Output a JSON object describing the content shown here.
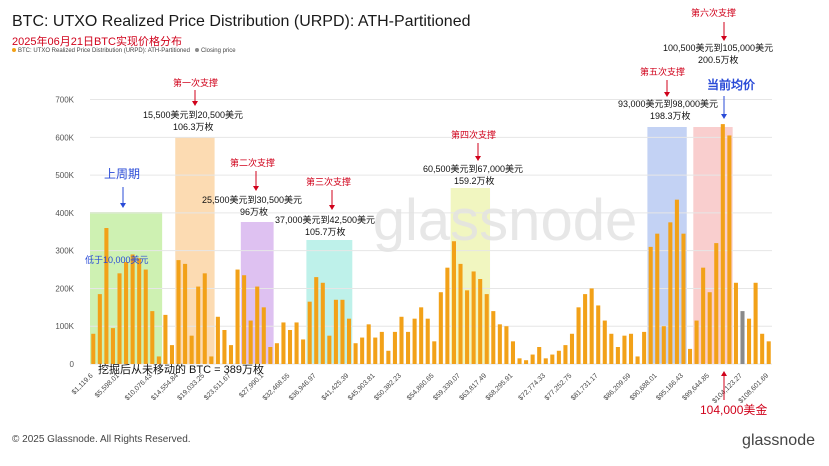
{
  "header": {
    "title": "BTC: UTXO Realized Price Distribution (URPD): ATH-Partitioned",
    "subtitle": "2025年06月21日BTC实现价格分布",
    "legend_series": "BTC: UTXO Realized Price Distribution (URPD): ATH-Partitioned",
    "legend_closing": "Closing price"
  },
  "footer": {
    "copyright": "© 2025 Glassnode. All Rights Reserved.",
    "brand": "glassnode",
    "watermark": "glassnode"
  },
  "annotations": {
    "last_cycle": "上周期",
    "below_10000": "低于10,000美元",
    "support1_title": "第一次支撑",
    "support1_range": "15,500美元到20,500美元",
    "support1_amount": "106.3万枚",
    "support2_title": "第二次支撑",
    "support2_range": "25,500美元到30,500美元",
    "support2_amount": "96万枚",
    "support3_title": "第三次支撑",
    "support3_range": "37,000美元到42,500美元",
    "support3_amount": "105.7万枚",
    "support4_title": "第四次支撑",
    "support4_range": "60,500美元到67,000美元",
    "support4_amount": "159.2万枚",
    "support5_title": "第五次支撑",
    "support5_range": "93,000美元到98,000美元",
    "support5_amount": "198.3万枚",
    "support6_title": "第六次支撑",
    "support6_range": "100,500美元到105,000美元",
    "support6_amount": "200.5万枚",
    "current_avg": "当前均价",
    "unmoved": "挖掘后从未移动的 BTC = 389万枚",
    "price_104000": "104,000美金"
  },
  "colors": {
    "bar": "#f2a118",
    "closing": "#8a8a8a",
    "zone_green": "#c6efa4",
    "zone_orange": "#fbd5a5",
    "zone_purple": "#d8b6ee",
    "zone_teal": "#b3eee6",
    "zone_yellow": "#eef5b5",
    "zone_blue": "#b9caf2",
    "zone_pink": "#f8c6c6",
    "accent_red": "#d0021b",
    "accent_blue": "#2a4bd7"
  },
  "chart_data": {
    "type": "bar",
    "yticks": [
      "0",
      "100K",
      "200K",
      "300K",
      "400K",
      "500K",
      "600K",
      "700K"
    ],
    "ylim": [
      0,
      720000
    ],
    "xticks": [
      "$1,119.6",
      "$5,598.01",
      "$10,076.43",
      "$14,554.84",
      "$19,033.25",
      "$23,511.67",
      "$27,990.1",
      "$32,468.55",
      "$36,946.97",
      "$41,425.39",
      "$45,903.81",
      "$50,382.23",
      "$54,860.65",
      "$59,339.07",
      "$63,817.49",
      "$68,295.91",
      "$72,774.33",
      "$77,252.75",
      "$81,731.17",
      "$86,209.59",
      "$90,688.01",
      "$95,166.43",
      "$99,644.85",
      "$104,123.27",
      "$108,601.69"
    ],
    "closing_price_bar_index": 99,
    "values": [
      80000,
      185000,
      360000,
      95000,
      240000,
      270000,
      290000,
      280000,
      250000,
      140000,
      20000,
      130000,
      50000,
      275000,
      265000,
      75000,
      205000,
      240000,
      20000,
      125000,
      90000,
      50000,
      250000,
      235000,
      115000,
      205000,
      150000,
      45000,
      55000,
      110000,
      90000,
      110000,
      65000,
      165000,
      230000,
      215000,
      75000,
      170000,
      170000,
      120000,
      55000,
      70000,
      105000,
      70000,
      85000,
      35000,
      85000,
      125000,
      85000,
      120000,
      150000,
      120000,
      60000,
      190000,
      255000,
      325000,
      265000,
      195000,
      245000,
      225000,
      185000,
      140000,
      105000,
      100000,
      60000,
      15000,
      10000,
      25000,
      45000,
      15000,
      25000,
      35000,
      50000,
      80000,
      150000,
      185000,
      200000,
      155000,
      115000,
      80000,
      45000,
      75000,
      80000,
      20000,
      85000,
      310000,
      345000,
      100000,
      375000,
      435000,
      345000,
      40000,
      115000,
      255000,
      190000,
      320000,
      635000,
      605000,
      215000,
      140000,
      120000,
      215000,
      80000,
      60000
    ]
  }
}
